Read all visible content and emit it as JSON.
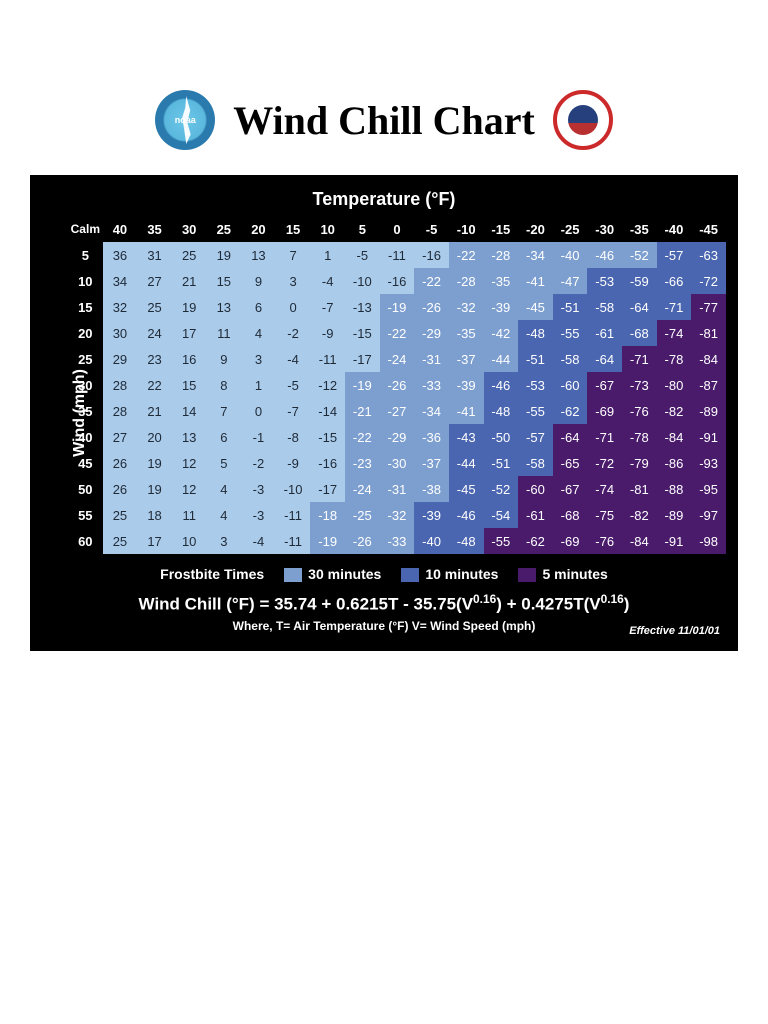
{
  "title": "Wind Chill Chart",
  "logos": {
    "noaa_text": "noaa"
  },
  "axis": {
    "temp_header": "Temperature (°F)",
    "wind_header": "Wind (mph)",
    "calm_label": "Calm"
  },
  "temps": [
    "40",
    "35",
    "30",
    "25",
    "20",
    "15",
    "10",
    "5",
    "0",
    "-5",
    "-10",
    "-15",
    "-20",
    "-25",
    "-30",
    "-35",
    "-40",
    "-45"
  ],
  "winds": [
    "5",
    "10",
    "15",
    "20",
    "25",
    "30",
    "35",
    "40",
    "45",
    "50",
    "55",
    "60"
  ],
  "grid": [
    [
      36,
      31,
      25,
      19,
      13,
      7,
      1,
      -5,
      -11,
      -16,
      -22,
      -28,
      -34,
      -40,
      -46,
      -52,
      -57,
      -63
    ],
    [
      34,
      27,
      21,
      15,
      9,
      3,
      -4,
      -10,
      -16,
      -22,
      -28,
      -35,
      -41,
      -47,
      -53,
      -59,
      -66,
      -72
    ],
    [
      32,
      25,
      19,
      13,
      6,
      0,
      -7,
      -13,
      -19,
      -26,
      -32,
      -39,
      -45,
      -51,
      -58,
      -64,
      -71,
      -77
    ],
    [
      30,
      24,
      17,
      11,
      4,
      -2,
      -9,
      -15,
      -22,
      -29,
      -35,
      -42,
      -48,
      -55,
      -61,
      -68,
      -74,
      -81
    ],
    [
      29,
      23,
      16,
      9,
      3,
      -4,
      -11,
      -17,
      -24,
      -31,
      -37,
      -44,
      -51,
      -58,
      -64,
      -71,
      -78,
      -84
    ],
    [
      28,
      22,
      15,
      8,
      1,
      -5,
      -12,
      -19,
      -26,
      -33,
      -39,
      -46,
      -53,
      -60,
      -67,
      -73,
      -80,
      -87
    ],
    [
      28,
      21,
      14,
      7,
      0,
      -7,
      -14,
      -21,
      -27,
      -34,
      -41,
      -48,
      -55,
      -62,
      -69,
      -76,
      -82,
      -89
    ],
    [
      27,
      20,
      13,
      6,
      -1,
      -8,
      -15,
      -22,
      -29,
      -36,
      -43,
      -50,
      -57,
      -64,
      -71,
      -78,
      -84,
      -91
    ],
    [
      26,
      19,
      12,
      5,
      -2,
      -9,
      -16,
      -23,
      -30,
      -37,
      -44,
      -51,
      -58,
      -65,
      -72,
      -79,
      -86,
      -93
    ],
    [
      26,
      19,
      12,
      4,
      -3,
      -10,
      -17,
      -24,
      -31,
      -38,
      -45,
      -52,
      -60,
      -67,
      -74,
      -81,
      -88,
      -95
    ],
    [
      25,
      18,
      11,
      4,
      -3,
      -11,
      -18,
      -25,
      -32,
      -39,
      -46,
      -54,
      -61,
      -68,
      -75,
      -82,
      -89,
      -97
    ],
    [
      25,
      17,
      10,
      3,
      -4,
      -11,
      -19,
      -26,
      -33,
      -40,
      -48,
      -55,
      -62,
      -69,
      -76,
      -84,
      -91,
      -98
    ]
  ],
  "zones": [
    [
      0,
      0,
      0,
      0,
      0,
      0,
      0,
      0,
      0,
      0,
      1,
      1,
      1,
      1,
      1,
      1,
      2,
      2
    ],
    [
      0,
      0,
      0,
      0,
      0,
      0,
      0,
      0,
      0,
      1,
      1,
      1,
      1,
      1,
      2,
      2,
      2,
      2
    ],
    [
      0,
      0,
      0,
      0,
      0,
      0,
      0,
      0,
      1,
      1,
      1,
      1,
      1,
      2,
      2,
      2,
      2,
      3
    ],
    [
      0,
      0,
      0,
      0,
      0,
      0,
      0,
      0,
      1,
      1,
      1,
      1,
      2,
      2,
      2,
      2,
      3,
      3
    ],
    [
      0,
      0,
      0,
      0,
      0,
      0,
      0,
      0,
      1,
      1,
      1,
      1,
      2,
      2,
      2,
      3,
      3,
      3
    ],
    [
      0,
      0,
      0,
      0,
      0,
      0,
      0,
      1,
      1,
      1,
      1,
      2,
      2,
      2,
      3,
      3,
      3,
      3
    ],
    [
      0,
      0,
      0,
      0,
      0,
      0,
      0,
      1,
      1,
      1,
      1,
      2,
      2,
      2,
      3,
      3,
      3,
      3
    ],
    [
      0,
      0,
      0,
      0,
      0,
      0,
      0,
      1,
      1,
      1,
      2,
      2,
      2,
      3,
      3,
      3,
      3,
      3
    ],
    [
      0,
      0,
      0,
      0,
      0,
      0,
      0,
      1,
      1,
      1,
      2,
      2,
      2,
      3,
      3,
      3,
      3,
      3
    ],
    [
      0,
      0,
      0,
      0,
      0,
      0,
      0,
      1,
      1,
      1,
      2,
      2,
      3,
      3,
      3,
      3,
      3,
      3
    ],
    [
      0,
      0,
      0,
      0,
      0,
      0,
      1,
      1,
      1,
      2,
      2,
      2,
      3,
      3,
      3,
      3,
      3,
      3
    ],
    [
      0,
      0,
      0,
      0,
      0,
      0,
      1,
      1,
      1,
      2,
      2,
      3,
      3,
      3,
      3,
      3,
      3,
      3
    ]
  ],
  "zone_colors": [
    "#aacbea",
    "#7d9fcf",
    "#4b66b0",
    "#4a1a6b"
  ],
  "zone_text_colors": [
    "#1f2a37",
    "#ffffff",
    "#ffffff",
    "#ffffff"
  ],
  "legend": {
    "title": "Frostbite Times",
    "items": [
      {
        "label": "30 minutes",
        "swatch": "#7d9fcf"
      },
      {
        "label": "10 minutes",
        "swatch": "#4b66b0"
      },
      {
        "label": "5 minutes",
        "swatch": "#4a1a6b"
      }
    ]
  },
  "formula": {
    "text_prefix": "Wind Chill (°F) = 35.74 + 0.6215T - 35.75(V",
    "exp1": "0.16",
    "mid": ") + 0.4275T(V",
    "exp2": "0.16",
    "suffix": ")",
    "note": "Where, T= Air Temperature (°F)   V= Wind Speed (mph)"
  },
  "effective": "Effective 11/01/01"
}
